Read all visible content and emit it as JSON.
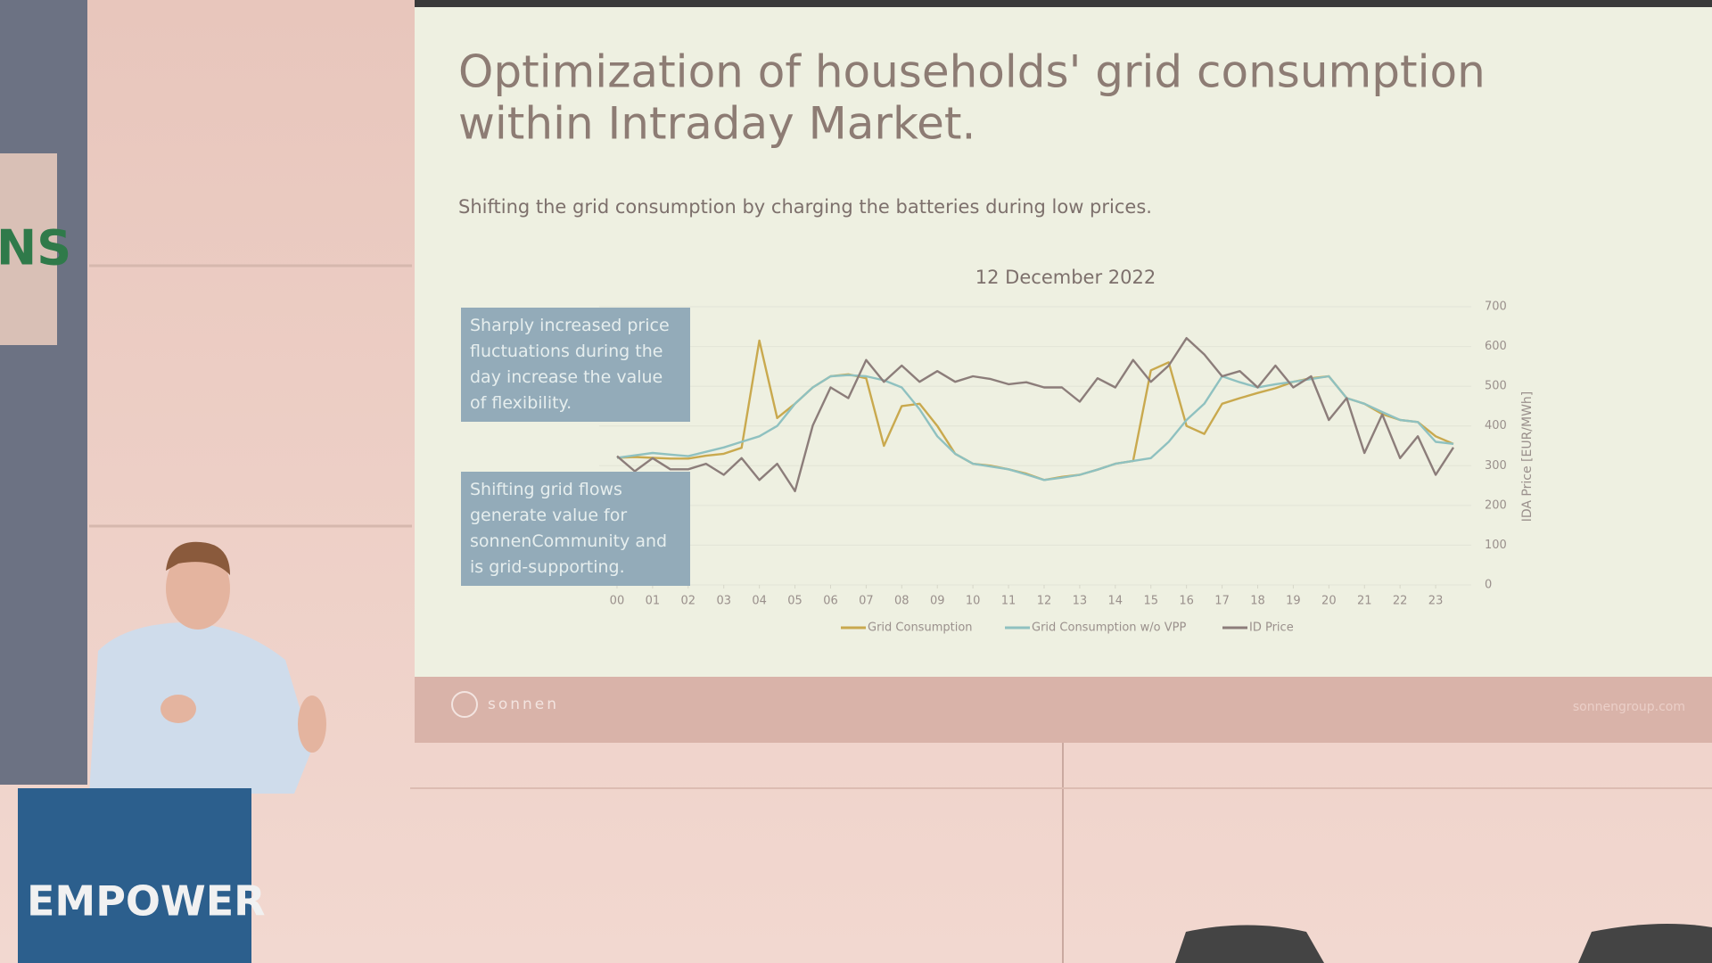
{
  "slide": {
    "title_lines": [
      "Optimization of households' grid consumption",
      "within Intraday Market."
    ],
    "subtitle": "Shifting the grid consumption by charging the batteries during low prices.",
    "callouts": [
      "Sharply increased price fluctuations during the day increase the value of flexibility.",
      "Shifting grid flows generate value for sonnenCommunity and is grid-supporting."
    ],
    "logo": "sonnen",
    "website": "sonnengroup.com"
  },
  "stage": {
    "sign": "NS",
    "podium": "EMPOWER"
  },
  "chart_data": {
    "type": "line",
    "title": "12 December 2022",
    "ylabel": "IDA Price [EUR/MWh]",
    "y_axis_side": "right",
    "grid": true,
    "legend": "bottom",
    "x": [
      0,
      0.5,
      1,
      1.5,
      2,
      2.5,
      3,
      3.5,
      4,
      4.5,
      5,
      5.5,
      6,
      6.5,
      7,
      7.5,
      8,
      8.5,
      9,
      9.5,
      10,
      10.5,
      11,
      11.5,
      12,
      12.5,
      13,
      13.5,
      14,
      14.5,
      15,
      15.5,
      16,
      16.5,
      17,
      17.5,
      18,
      18.5,
      19,
      19.5,
      20,
      20.5,
      21,
      21.5,
      22,
      22.5,
      23,
      23.5
    ],
    "xlim": [
      -0.5,
      24
    ],
    "xticks": [
      {
        "value": 0,
        "label": "00"
      },
      {
        "value": 1,
        "label": "01"
      },
      {
        "value": 2,
        "label": "02"
      },
      {
        "value": 3,
        "label": "03"
      },
      {
        "value": 4,
        "label": "04"
      },
      {
        "value": 5,
        "label": "05"
      },
      {
        "value": 6,
        "label": "06"
      },
      {
        "value": 7,
        "label": "07"
      },
      {
        "value": 8,
        "label": "08"
      },
      {
        "value": 9,
        "label": "09"
      },
      {
        "value": 10,
        "label": "10"
      },
      {
        "value": 11,
        "label": "11"
      },
      {
        "value": 12,
        "label": "12"
      },
      {
        "value": 13,
        "label": "13"
      },
      {
        "value": 14,
        "label": "14"
      },
      {
        "value": 15,
        "label": "15"
      },
      {
        "value": 16,
        "label": "16"
      },
      {
        "value": 17,
        "label": "17"
      },
      {
        "value": 18,
        "label": "18"
      },
      {
        "value": 19,
        "label": "19"
      },
      {
        "value": 20,
        "label": "20"
      },
      {
        "value": 21,
        "label": "21"
      },
      {
        "value": 22,
        "label": "22"
      },
      {
        "value": 23,
        "label": "23"
      }
    ],
    "ylim": [
      0,
      700
    ],
    "yticks": [
      0,
      100,
      200,
      300,
      400,
      500,
      600,
      700
    ],
    "series": [
      {
        "name": "Grid Consumption",
        "color": "#c9a94e",
        "values": [
          320,
          322,
          320,
          318,
          318,
          325,
          330,
          345,
          615,
          420,
          456,
          497,
          525,
          530,
          520,
          350,
          450,
          456,
          400,
          330,
          305,
          300,
          291,
          280,
          264,
          272,
          277,
          290,
          305,
          312,
          540,
          560,
          400,
          380,
          456,
          470,
          483,
          495,
          511,
          520,
          525,
          470,
          456,
          430,
          415,
          410,
          374,
          355
        ]
      },
      {
        "name": "Grid Consumption w/o VPP",
        "color": "#8fc1c0",
        "values": [
          320,
          326,
          332,
          328,
          324,
          335,
          346,
          360,
          374,
          400,
          456,
          497,
          525,
          528,
          525,
          515,
          497,
          442,
          374,
          330,
          305,
          298,
          291,
          278,
          264,
          270,
          277,
          290,
          305,
          312,
          319,
          360,
          415,
          456,
          525,
          510,
          497,
          505,
          511,
          518,
          525,
          470,
          456,
          435,
          415,
          410,
          360,
          355
        ]
      },
      {
        "name": "ID Price",
        "color": "#8c7d7a",
        "values": [
          324,
          286,
          319,
          291,
          291,
          305,
          277,
          319,
          264,
          305,
          236,
          401,
          497,
          470,
          566,
          511,
          552,
          511,
          538,
          511,
          525,
          518,
          505,
          510,
          497,
          497,
          461,
          520,
          497,
          566,
          511,
          552,
          621,
          580,
          525,
          538,
          497,
          552,
          497,
          525,
          415,
          470,
          332,
          429,
          319,
          374,
          277,
          346
        ]
      }
    ]
  }
}
